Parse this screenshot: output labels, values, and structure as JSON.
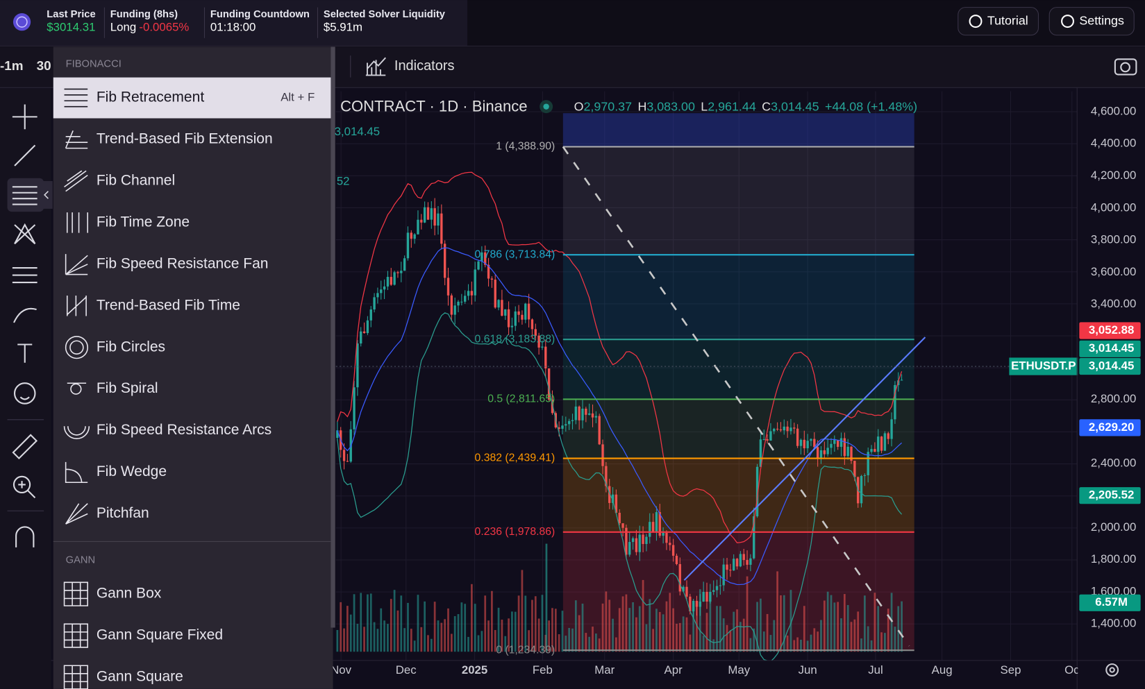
{
  "header": {
    "stats": [
      {
        "label": "Last Price",
        "value": "$3014.31"
      },
      {
        "label": "Funding (8hs)",
        "value": "Long",
        "change": "-0.0065%"
      },
      {
        "label": "Funding Countdown",
        "value": "01:18:00"
      },
      {
        "label": "Selected Solver Liquidity",
        "value": "$5.91m"
      }
    ],
    "buttons": [
      "Tutorial",
      "Settings"
    ]
  },
  "toolbar": {
    "intervals": [
      "-1m",
      "30"
    ],
    "indicators": "Indicators"
  },
  "menu": {
    "sections": [
      {
        "title": "FIBONACCI",
        "items": [
          {
            "label": "Fib Retracement",
            "shortcut": "Alt + F"
          },
          {
            "label": "Trend-Based Fib Extension"
          },
          {
            "label": "Fib Channel"
          },
          {
            "label": "Fib Time Zone"
          },
          {
            "label": "Fib Speed Resistance Fan"
          },
          {
            "label": "Trend-Based Fib Time"
          },
          {
            "label": "Fib Circles"
          },
          {
            "label": "Fib Spiral"
          },
          {
            "label": "Fib Speed Resistance Arcs"
          },
          {
            "label": "Fib Wedge"
          },
          {
            "label": "Pitchfan"
          }
        ]
      },
      {
        "title": "GANN",
        "items": [
          {
            "label": "Gann Box"
          },
          {
            "label": "Gann Square Fixed"
          },
          {
            "label": "Gann Square"
          }
        ]
      }
    ]
  },
  "chart": {
    "symbol_info": "CONTRACT · 1D · Binance",
    "ohlc": [
      {
        "key": "O",
        "value": "2,970.37"
      },
      {
        "key": "H",
        "value": "3,083.00"
      },
      {
        "key": "L",
        "value": "2,961.44"
      },
      {
        "key": "C",
        "value": "3,014.45"
      }
    ],
    "change": "+44.08 (+1.48%)",
    "overlay_labels": [
      "3,014.45",
      "52"
    ],
    "fib_levels": [
      "1 (4,388.90)",
      "0.786 (3,713.84)",
      "0.618 (3,183.88)",
      "0.5 (2,811.65)",
      "0.382 (2,439.41)",
      "0.236 (1,978.86)",
      "0 (1,234.39)"
    ],
    "price_axis": [
      "4,600.00",
      "4,400.00",
      "4,200.00",
      "4,000.00",
      "3,800.00",
      "3,600.00",
      "3,400.00",
      "2,800.00",
      "2,400.00",
      "2,000.00",
      "1,800.00",
      "1,600.00",
      "1,400.00"
    ],
    "price_badges": [
      "3,052.88",
      "3,014.45",
      "3,014.45",
      "2,629.20",
      "2,205.52",
      "6.57M"
    ],
    "symbol_tag": "ETHUSDT.P",
    "time_axis": [
      "Nov",
      "Dec",
      "2025",
      "Feb",
      "Mar",
      "Apr",
      "May",
      "Jun",
      "Jul",
      "Aug",
      "Sep",
      "Oc"
    ]
  }
}
